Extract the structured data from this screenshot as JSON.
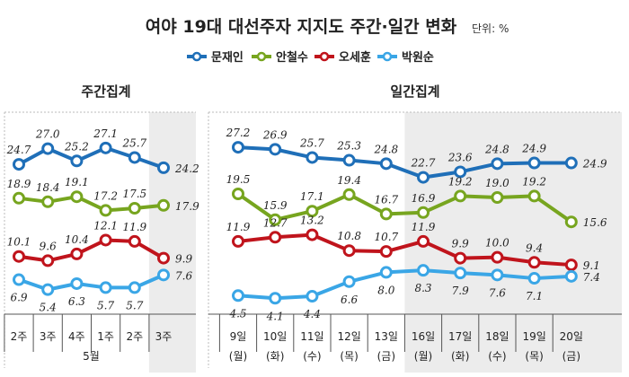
{
  "title": "여야 19대 대선주자 지지도 주간·일간 변화",
  "unit": "단위: %",
  "colors": {
    "문재인": "#1f6fb8",
    "안철수": "#77a51f",
    "오세훈": "#c0141c",
    "박원순": "#3aa6e6"
  },
  "chart_data": [
    {
      "type": "line",
      "title": "주간집계",
      "categories": [
        "2주",
        "3주",
        "4주",
        "1주",
        "2주",
        "3주"
      ],
      "month_label": "5월",
      "highlight_last": true,
      "legend": {
        "placement": "top",
        "entries": [
          "문재인",
          "안철수",
          "오세훈",
          "박원순"
        ]
      },
      "series": [
        {
          "name": "문재인",
          "values": [
            24.7,
            27.0,
            25.2,
            27.1,
            25.7,
            24.2
          ]
        },
        {
          "name": "안철수",
          "values": [
            18.9,
            18.4,
            19.1,
            17.2,
            17.5,
            17.9
          ]
        },
        {
          "name": "오세훈",
          "values": [
            10.1,
            9.6,
            10.4,
            12.1,
            11.9,
            9.9
          ]
        },
        {
          "name": "박원순",
          "values": [
            6.9,
            5.4,
            6.3,
            5.7,
            5.7,
            7.6
          ]
        }
      ]
    },
    {
      "type": "line",
      "title": "일간집계",
      "categories": [
        "9일",
        "10일",
        "11일",
        "12일",
        "13일",
        "16일",
        "17일",
        "18일",
        "19일",
        "20일"
      ],
      "weekdays": [
        "(월)",
        "(화)",
        "(수)",
        "(목)",
        "(금)",
        "(월)",
        "(화)",
        "(수)",
        "(목)",
        "(금)"
      ],
      "highlight_from_index": 5,
      "series": [
        {
          "name": "문재인",
          "values": [
            27.2,
            26.9,
            25.7,
            25.3,
            24.8,
            22.7,
            23.6,
            24.8,
            24.9,
            24.9
          ]
        },
        {
          "name": "안철수",
          "values": [
            19.5,
            15.9,
            17.1,
            19.4,
            16.7,
            16.9,
            19.2,
            19.0,
            19.2,
            15.6
          ]
        },
        {
          "name": "오세훈",
          "values": [
            11.9,
            12.7,
            13.2,
            10.8,
            10.7,
            11.9,
            9.9,
            10.0,
            9.4,
            9.1
          ]
        },
        {
          "name": "박원순",
          "values": [
            4.5,
            4.1,
            4.4,
            6.6,
            8.0,
            8.3,
            7.9,
            7.6,
            7.1,
            7.4
          ]
        }
      ]
    }
  ]
}
